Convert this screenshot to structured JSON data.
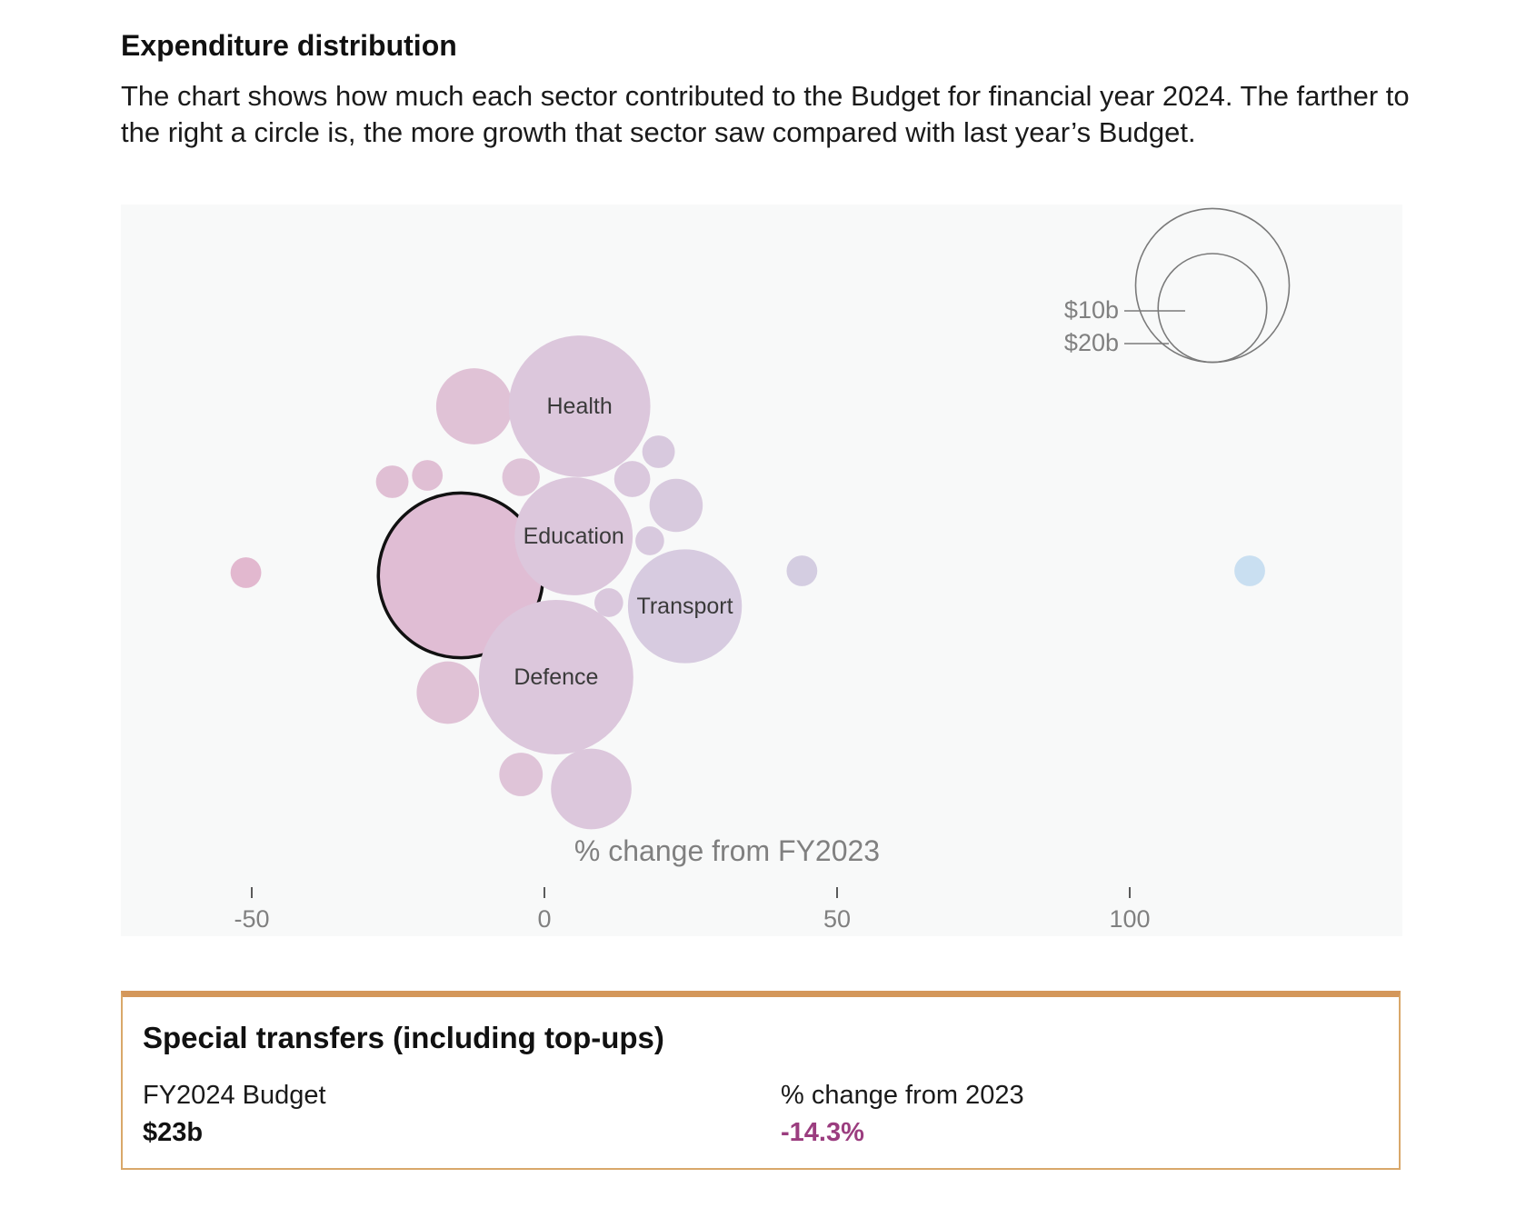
{
  "header": {
    "title": "Expenditure distribution",
    "description": "The chart shows how much each sector contributed to the Budget for financial year 2024. The farther to the right a circle is, the more growth that sector saw compared with last year’s Budget."
  },
  "chart_data": {
    "type": "scatter",
    "title": "Expenditure distribution",
    "xlabel": "% change from FY2023",
    "x_ticks": [
      "-50",
      "0",
      "50",
      "100"
    ],
    "xlim": [
      -72,
      147
    ],
    "size_legend": {
      "labels": [
        "$10b",
        "$20b"
      ],
      "values_billion": [
        10,
        20
      ]
    },
    "colors": {
      "negative": "#e2bcd2",
      "neutral": "#dcc7dc",
      "positive": "#d6cce0",
      "high_growth": "#c9dff1",
      "highlight_outline": "#111111",
      "legend_stroke": "#7a7a7a"
    },
    "bubbles": [
      {
        "label": "",
        "x": -51.0,
        "value_billion": 0.8,
        "color": "#e2b8cf"
      },
      {
        "label": "",
        "x": -14.3,
        "value_billion": 23.0,
        "color": "#e0bdd4",
        "highlighted": true
      },
      {
        "label": "",
        "x": -26.0,
        "value_billion": 0.9,
        "color": "#e0bfd4"
      },
      {
        "label": "",
        "x": -20.0,
        "value_billion": 0.8,
        "color": "#e0bfd4"
      },
      {
        "label": "",
        "x": -12.0,
        "value_billion": 4.9,
        "color": "#e0c2d6"
      },
      {
        "label": "",
        "x": -16.5,
        "value_billion": 3.3,
        "color": "#e0c2d6"
      },
      {
        "label": "",
        "x": -4.0,
        "value_billion": 1.2,
        "color": "#dfc4d8"
      },
      {
        "label": "",
        "x": -4.0,
        "value_billion": 1.6,
        "color": "#dfc4d8"
      },
      {
        "label": "Health",
        "x": 6.0,
        "value_billion": 17.0,
        "color": "#dcc7dc"
      },
      {
        "label": "Education",
        "x": 5.0,
        "value_billion": 11.8,
        "color": "#dcc7dc"
      },
      {
        "label": "Defence",
        "x": 2.0,
        "value_billion": 20.2,
        "color": "#dcc7dc"
      },
      {
        "label": "",
        "x": 8.0,
        "value_billion": 5.5,
        "color": "#dcc7dc"
      },
      {
        "label": "",
        "x": 11.0,
        "value_billion": 0.7,
        "color": "#dac8dd"
      },
      {
        "label": "",
        "x": 15.0,
        "value_billion": 1.1,
        "color": "#dac8dd"
      },
      {
        "label": "",
        "x": 19.5,
        "value_billion": 0.9,
        "color": "#d8c9de"
      },
      {
        "label": "",
        "x": 18.0,
        "value_billion": 0.7,
        "color": "#d8c9de"
      },
      {
        "label": "",
        "x": 22.5,
        "value_billion": 2.4,
        "color": "#d8cade"
      },
      {
        "label": "Transport",
        "x": 24.0,
        "value_billion": 11.0,
        "color": "#d7cbe0"
      },
      {
        "label": "",
        "x": 44.0,
        "value_billion": 0.8,
        "color": "#d4cde1"
      },
      {
        "label": "",
        "x": 120.5,
        "value_billion": 0.8,
        "color": "#c9dff1"
      }
    ]
  },
  "card": {
    "title": "Special transfers (including top-ups)",
    "budget_label": "FY2024 Budget",
    "budget_value": "$23b",
    "change_label": "% change from 2023",
    "change_value": "-14.3%",
    "change_color": "#9b3d7f"
  }
}
